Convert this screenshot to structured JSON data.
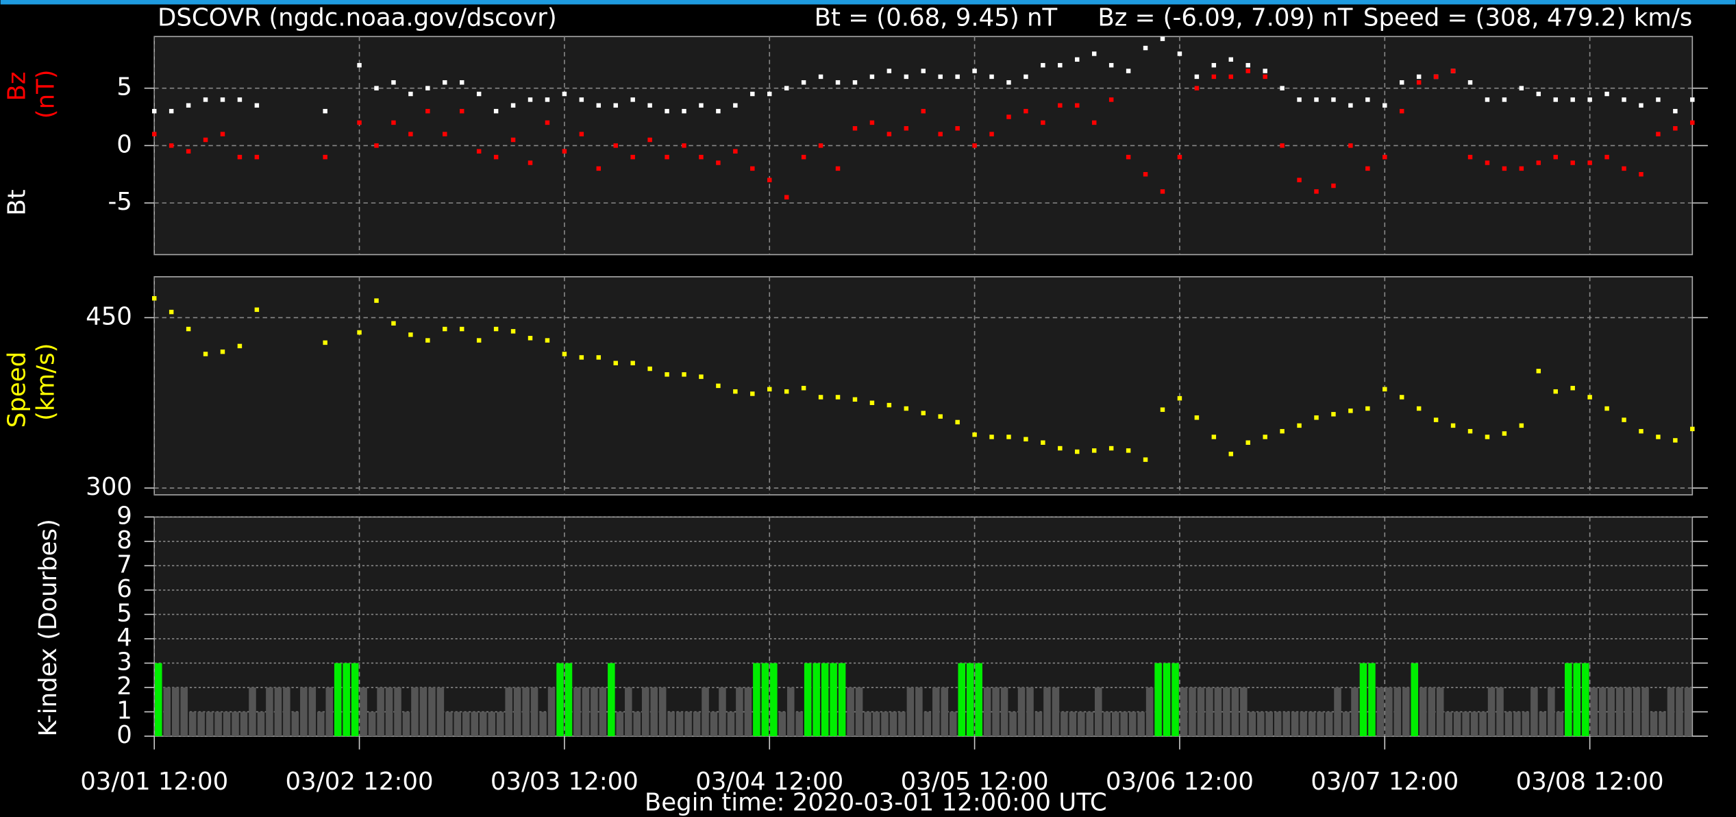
{
  "title": "DSCOVR (ngdc.noaa.gov/dscovr)",
  "ranges": [
    "Bt = (0.68, 9.45) nT",
    "Bz = (-6.09, 7.09) nT",
    "Speed = (308, 479.2) km/s"
  ],
  "footer": "Begin time: 2020-03-01 12:00:00 UTC",
  "chart_data": [
    {
      "type": "scatter",
      "yunit": "(nT)",
      "xlim": [
        0,
        180
      ],
      "ylim": [
        -9.5,
        9.5
      ],
      "yticks": [
        -5,
        0,
        5
      ],
      "grid": true,
      "x": [
        0,
        2,
        4,
        6,
        8,
        10,
        12,
        14,
        16,
        18,
        20,
        22,
        24,
        26,
        28,
        30,
        32,
        34,
        36,
        38,
        40,
        42,
        44,
        46,
        48,
        50,
        52,
        54,
        56,
        58,
        60,
        62,
        64,
        66,
        68,
        70,
        72,
        74,
        76,
        78,
        80,
        82,
        84,
        86,
        88,
        90,
        92,
        94,
        96,
        98,
        100,
        102,
        104,
        106,
        108,
        110,
        112,
        114,
        116,
        118,
        120,
        122,
        124,
        126,
        128,
        130,
        132,
        134,
        136,
        138,
        140,
        142,
        144,
        146,
        148,
        150,
        152,
        154,
        156,
        158,
        160,
        162,
        164,
        166,
        168,
        170,
        172,
        174,
        176,
        178,
        180
      ],
      "series": [
        {
          "name": "Bt",
          "color": "#ffffff",
          "values": [
            3,
            3,
            3.5,
            4,
            4,
            4,
            3.5,
            null,
            null,
            null,
            3,
            null,
            7,
            5,
            5.5,
            4.5,
            5,
            5.5,
            5.5,
            4.5,
            3,
            3.5,
            4,
            4,
            4.5,
            4,
            3.5,
            3.5,
            4,
            3.5,
            3,
            3,
            3.5,
            3,
            3.5,
            4.5,
            4.5,
            5,
            5.5,
            6,
            5.5,
            5.5,
            6,
            6.5,
            6,
            6.5,
            6,
            6,
            6.5,
            6,
            5.5,
            6,
            7,
            7,
            7.5,
            8,
            7,
            6.5,
            8.5,
            9.3,
            8,
            6,
            7,
            7.5,
            7,
            6.5,
            5,
            4,
            4,
            4,
            3.5,
            4,
            3.5,
            5.5,
            6,
            6,
            6.5,
            5.5,
            4,
            4,
            5,
            4.5,
            4,
            4,
            4,
            4.5,
            4,
            3.5,
            4,
            3,
            4
          ]
        },
        {
          "name": "Bz",
          "color": "#ff0000",
          "values": [
            1,
            0,
            -0.5,
            0.5,
            1,
            -1,
            -1,
            null,
            null,
            null,
            -1,
            null,
            2,
            0,
            2,
            1,
            3,
            1,
            3,
            -0.5,
            -1,
            0.5,
            -1.5,
            2,
            -0.5,
            1,
            -2,
            0,
            -1,
            0.5,
            -1,
            0,
            -1,
            -1.5,
            -0.5,
            -2,
            -3,
            -4.5,
            -1,
            0,
            -2,
            1.5,
            2,
            1,
            1.5,
            3,
            1,
            1.5,
            0,
            1,
            2.5,
            3,
            2,
            3.5,
            3.5,
            2,
            4,
            -1,
            -2.5,
            -4,
            -1,
            5,
            6,
            6,
            6.5,
            6,
            0,
            -3,
            -4,
            -3.5,
            0,
            -2,
            -1,
            3,
            5.5,
            6,
            6.5,
            -1,
            -1.5,
            -2,
            -2,
            -1.5,
            -1,
            -1.5,
            -1.5,
            -1,
            -2,
            -2.5,
            1,
            1.5,
            2
          ]
        }
      ]
    },
    {
      "type": "scatter",
      "yunit": "(km/s)",
      "xlim": [
        0,
        180
      ],
      "ylim": [
        294,
        486
      ],
      "yticks": [
        300,
        450
      ],
      "grid": true,
      "x": [
        0,
        2,
        4,
        6,
        8,
        10,
        12,
        14,
        16,
        18,
        20,
        22,
        24,
        26,
        28,
        30,
        32,
        34,
        36,
        38,
        40,
        42,
        44,
        46,
        48,
        50,
        52,
        54,
        56,
        58,
        60,
        62,
        64,
        66,
        68,
        70,
        72,
        74,
        76,
        78,
        80,
        82,
        84,
        86,
        88,
        90,
        92,
        94,
        96,
        98,
        100,
        102,
        104,
        106,
        108,
        110,
        112,
        114,
        116,
        118,
        120,
        122,
        124,
        126,
        128,
        130,
        132,
        134,
        136,
        138,
        140,
        142,
        144,
        146,
        148,
        150,
        152,
        154,
        156,
        158,
        160,
        162,
        164,
        166,
        168,
        170,
        172,
        174,
        176,
        178,
        180
      ],
      "series": [
        {
          "name": "Speed",
          "color": "#ffff00",
          "values": [
            467,
            455,
            440,
            418,
            420,
            425,
            457,
            null,
            null,
            null,
            428,
            null,
            437,
            465,
            445,
            435,
            430,
            440,
            440,
            430,
            440,
            438,
            432,
            430,
            418,
            415,
            415,
            410,
            410,
            405,
            400,
            400,
            398,
            390,
            385,
            383,
            387,
            385,
            388,
            380,
            380,
            378,
            375,
            373,
            370,
            366,
            363,
            358,
            347,
            345,
            345,
            343,
            340,
            335,
            332,
            333,
            335,
            333,
            325,
            369,
            379,
            362,
            345,
            330,
            340,
            345,
            350,
            355,
            362,
            365,
            368,
            370,
            387,
            380,
            370,
            360,
            355,
            350,
            345,
            348,
            355,
            403,
            385,
            388,
            380,
            370,
            360,
            350,
            345,
            342,
            352
          ]
        }
      ]
    },
    {
      "type": "bar",
      "ylabel": "K-index (Dourbes)",
      "xlim": [
        0,
        180
      ],
      "ylim": [
        0,
        9
      ],
      "yticks": [
        0,
        1,
        2,
        3,
        4,
        5,
        6,
        7,
        8,
        9
      ],
      "grid": true,
      "color_scale": [
        "#555555",
        "#555555",
        "#555555",
        "#00ee00"
      ],
      "xticks": [
        {
          "value": 0,
          "label": "03/01 12:00"
        },
        {
          "value": 24,
          "label": "03/02 12:00"
        },
        {
          "value": 48,
          "label": "03/03 12:00"
        },
        {
          "value": 72,
          "label": "03/04 12:00"
        },
        {
          "value": 96,
          "label": "03/05 12:00"
        },
        {
          "value": 120,
          "label": "03/06 12:00"
        },
        {
          "value": 144,
          "label": "03/07 12:00"
        },
        {
          "value": 168,
          "label": "03/08 12:00"
        }
      ],
      "values": [
        3,
        2,
        2,
        2,
        1,
        1,
        1,
        1,
        1,
        1,
        1,
        2,
        1,
        2,
        2,
        2,
        1,
        2,
        2,
        1,
        2,
        3,
        3,
        3,
        2,
        1,
        2,
        2,
        2,
        1,
        2,
        2,
        2,
        2,
        1,
        1,
        1,
        1,
        1,
        1,
        1,
        2,
        2,
        2,
        2,
        1,
        2,
        3,
        3,
        2,
        2,
        2,
        2,
        3,
        1,
        2,
        1,
        2,
        2,
        2,
        1,
        1,
        1,
        1,
        2,
        1,
        2,
        1,
        2,
        2,
        3,
        3,
        3,
        1,
        2,
        1,
        3,
        3,
        3,
        3,
        3,
        2,
        2,
        1,
        1,
        1,
        1,
        1,
        2,
        2,
        1,
        2,
        2,
        1,
        3,
        3,
        3,
        2,
        2,
        2,
        1,
        2,
        2,
        1,
        2,
        2,
        1,
        1,
        1,
        1,
        2,
        1,
        1,
        1,
        1,
        1,
        2,
        3,
        3,
        3,
        2,
        2,
        2,
        2,
        2,
        2,
        2,
        2,
        1,
        1,
        1,
        1,
        1,
        1,
        1,
        1,
        1,
        1,
        2,
        1,
        2,
        3,
        3,
        2,
        2,
        2,
        2,
        3,
        2,
        2,
        2,
        1,
        1,
        1,
        1,
        1,
        2,
        2,
        1,
        1,
        1,
        2,
        1,
        2,
        1,
        3,
        3,
        3,
        2,
        2,
        2,
        2,
        2,
        2,
        2,
        1,
        1,
        2,
        2,
        2
      ]
    }
  ]
}
